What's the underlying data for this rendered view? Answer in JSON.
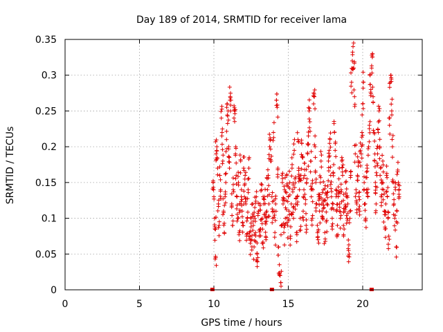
{
  "chart_data": {
    "type": "scatter",
    "title": "Day 189 of 2014, SRMTID for receiver lama",
    "xlabel": "GPS time / hours",
    "ylabel": "SRMTID / TECUs",
    "xlim": [
      0,
      24
    ],
    "ylim": [
      0,
      0.35
    ],
    "x_ticks": [
      0,
      5,
      10,
      15,
      20
    ],
    "x_tick_labels": [
      "0",
      "5",
      "10",
      "15",
      "20"
    ],
    "y_ticks": [
      0,
      0.05,
      0.1,
      0.15,
      0.2,
      0.25,
      0.3,
      0.35
    ],
    "y_tick_labels": [
      "0",
      "0.05",
      "0.1",
      "0.15",
      "0.2",
      "0.25",
      "0.3",
      "0.35"
    ],
    "grid": true,
    "marker": "plus",
    "color": "#e00000",
    "data_x_range": [
      9.9,
      22.5
    ],
    "baseline_markers_x": [
      9.9,
      13.9,
      20.6
    ],
    "series": [
      {
        "name": "lama",
        "points": [
          [
            9.95,
            0.15
          ],
          [
            10.0,
            0.13
          ],
          [
            10.05,
            0.1
          ],
          [
            10.1,
            0.085
          ],
          [
            10.12,
            0.045
          ],
          [
            10.15,
            0.19
          ],
          [
            10.2,
            0.2
          ],
          [
            10.25,
            0.17
          ],
          [
            10.3,
            0.12
          ],
          [
            10.35,
            0.09
          ],
          [
            10.4,
            0.16
          ],
          [
            10.45,
            0.14
          ],
          [
            10.5,
            0.24
          ],
          [
            10.55,
            0.22
          ],
          [
            10.6,
            0.18
          ],
          [
            10.65,
            0.11
          ],
          [
            10.7,
            0.08
          ],
          [
            10.75,
            0.13
          ],
          [
            10.8,
            0.15
          ],
          [
            10.85,
            0.21
          ],
          [
            10.9,
            0.26
          ],
          [
            10.95,
            0.25
          ],
          [
            11.0,
            0.2
          ],
          [
            11.05,
            0.17
          ],
          [
            11.1,
            0.27
          ],
          [
            11.15,
            0.265
          ],
          [
            11.2,
            0.12
          ],
          [
            11.25,
            0.09
          ],
          [
            11.3,
            0.14
          ],
          [
            11.35,
            0.24
          ],
          [
            11.4,
            0.25
          ],
          [
            11.45,
            0.19
          ],
          [
            11.5,
            0.16
          ],
          [
            11.55,
            0.13
          ],
          [
            11.6,
            0.1
          ],
          [
            11.65,
            0.15
          ],
          [
            11.7,
            0.08
          ],
          [
            11.75,
            0.12
          ],
          [
            11.8,
            0.18
          ],
          [
            11.85,
            0.14
          ],
          [
            11.9,
            0.11
          ],
          [
            11.95,
            0.09
          ],
          [
            12.0,
            0.17
          ],
          [
            12.05,
            0.13
          ],
          [
            12.1,
            0.16
          ],
          [
            12.15,
            0.12
          ],
          [
            12.2,
            0.075
          ],
          [
            12.25,
            0.1
          ],
          [
            12.3,
            0.14
          ],
          [
            12.35,
            0.17
          ],
          [
            12.4,
            0.08
          ],
          [
            12.45,
            0.065
          ],
          [
            12.5,
            0.1
          ],
          [
            12.55,
            0.07
          ],
          [
            12.6,
            0.12
          ],
          [
            12.65,
            0.09
          ],
          [
            12.7,
            0.06
          ],
          [
            12.75,
            0.115
          ],
          [
            12.8,
            0.08
          ],
          [
            12.85,
            0.13
          ],
          [
            12.9,
            0.05
          ],
          [
            12.95,
            0.045
          ],
          [
            13.0,
            0.11
          ],
          [
            13.05,
            0.075
          ],
          [
            13.1,
            0.12
          ],
          [
            13.15,
            0.085
          ],
          [
            13.2,
            0.14
          ],
          [
            13.25,
            0.1
          ],
          [
            13.3,
            0.065
          ],
          [
            13.35,
            0.12
          ],
          [
            13.4,
            0.13
          ],
          [
            13.45,
            0.095
          ],
          [
            13.5,
            0.07
          ],
          [
            13.55,
            0.11
          ],
          [
            13.6,
            0.14
          ],
          [
            13.65,
            0.16
          ],
          [
            13.7,
            0.12
          ],
          [
            13.75,
            0.2
          ],
          [
            13.8,
            0.21
          ],
          [
            13.85,
            0.18
          ],
          [
            13.9,
            0.13
          ],
          [
            13.95,
            0.1
          ],
          [
            14.0,
            0.22
          ],
          [
            14.05,
            0.11
          ],
          [
            14.1,
            0.08
          ],
          [
            14.15,
            0.12
          ],
          [
            14.2,
            0.265
          ],
          [
            14.25,
            0.255
          ],
          [
            14.3,
            0.17
          ],
          [
            14.35,
            0.06
          ],
          [
            14.4,
            0.035
          ],
          [
            14.45,
            0.02
          ],
          [
            14.5,
            0.01
          ],
          [
            14.55,
            0.09
          ],
          [
            14.6,
            0.15
          ],
          [
            14.65,
            0.12
          ],
          [
            14.7,
            0.08
          ],
          [
            14.75,
            0.14
          ],
          [
            14.8,
            0.1
          ],
          [
            14.85,
            0.125
          ],
          [
            14.9,
            0.16
          ],
          [
            14.95,
            0.09
          ],
          [
            15.0,
            0.13
          ],
          [
            15.05,
            0.11
          ],
          [
            15.1,
            0.15
          ],
          [
            15.15,
            0.075
          ],
          [
            15.2,
            0.12
          ],
          [
            15.25,
            0.17
          ],
          [
            15.3,
            0.14
          ],
          [
            15.35,
            0.1
          ],
          [
            15.4,
            0.195
          ],
          [
            15.45,
            0.155
          ],
          [
            15.5,
            0.12
          ],
          [
            15.55,
            0.08
          ],
          [
            15.6,
            0.13
          ],
          [
            15.65,
            0.21
          ],
          [
            15.7,
            0.17
          ],
          [
            15.75,
            0.14
          ],
          [
            15.8,
            0.1
          ],
          [
            15.85,
            0.16
          ],
          [
            15.9,
            0.205
          ],
          [
            15.95,
            0.185
          ],
          [
            16.0,
            0.11
          ],
          [
            16.05,
            0.14
          ],
          [
            16.1,
            0.16
          ],
          [
            16.15,
            0.12
          ],
          [
            16.2,
            0.09
          ],
          [
            16.25,
            0.155
          ],
          [
            16.3,
            0.19
          ],
          [
            16.35,
            0.215
          ],
          [
            16.4,
            0.25
          ],
          [
            16.45,
            0.235
          ],
          [
            16.5,
            0.18
          ],
          [
            16.55,
            0.13
          ],
          [
            16.6,
            0.1
          ],
          [
            16.65,
            0.14
          ],
          [
            16.7,
            0.26
          ],
          [
            16.75,
            0.27
          ],
          [
            16.8,
            0.2
          ],
          [
            16.85,
            0.15
          ],
          [
            16.9,
            0.12
          ],
          [
            16.95,
            0.09
          ],
          [
            17.0,
            0.07
          ],
          [
            17.05,
            0.13
          ],
          [
            17.1,
            0.11
          ],
          [
            17.15,
            0.15
          ],
          [
            17.2,
            0.18
          ],
          [
            17.25,
            0.12
          ],
          [
            17.3,
            0.1
          ],
          [
            17.35,
            0.14
          ],
          [
            17.4,
            0.115
          ],
          [
            17.45,
            0.08
          ],
          [
            17.5,
            0.135
          ],
          [
            17.55,
            0.095
          ],
          [
            17.6,
            0.12
          ],
          [
            17.65,
            0.145
          ],
          [
            17.7,
            0.18
          ],
          [
            17.75,
            0.195
          ],
          [
            17.8,
            0.21
          ],
          [
            17.85,
            0.16
          ],
          [
            17.9,
            0.13
          ],
          [
            17.95,
            0.1
          ],
          [
            18.0,
            0.12
          ],
          [
            18.05,
            0.175
          ],
          [
            18.1,
            0.22
          ],
          [
            18.15,
            0.195
          ],
          [
            18.2,
            0.14
          ],
          [
            18.25,
            0.11
          ],
          [
            18.3,
            0.09
          ],
          [
            18.35,
            0.13
          ],
          [
            18.4,
            0.155
          ],
          [
            18.45,
            0.12
          ],
          [
            18.5,
            0.1
          ],
          [
            18.55,
            0.14
          ],
          [
            18.6,
            0.18
          ],
          [
            18.65,
            0.16
          ],
          [
            18.7,
            0.125
          ],
          [
            18.75,
            0.085
          ],
          [
            18.8,
            0.11
          ],
          [
            18.85,
            0.15
          ],
          [
            18.9,
            0.13
          ],
          [
            18.95,
            0.1
          ],
          [
            19.0,
            0.12
          ],
          [
            19.05,
            0.055
          ],
          [
            19.1,
            0.05
          ],
          [
            19.15,
            0.11
          ],
          [
            19.2,
            0.16
          ],
          [
            19.25,
            0.29
          ],
          [
            19.3,
            0.32
          ],
          [
            19.35,
            0.34
          ],
          [
            19.4,
            0.31
          ],
          [
            19.45,
            0.27
          ],
          [
            19.5,
            0.19
          ],
          [
            19.55,
            0.14
          ],
          [
            19.6,
            0.12
          ],
          [
            19.65,
            0.16
          ],
          [
            19.7,
            0.18
          ],
          [
            19.75,
            0.13
          ],
          [
            19.8,
            0.11
          ],
          [
            19.85,
            0.195
          ],
          [
            19.9,
            0.19
          ],
          [
            19.95,
            0.22
          ],
          [
            20.0,
            0.26
          ],
          [
            20.05,
            0.29
          ],
          [
            20.1,
            0.15
          ],
          [
            20.15,
            0.12
          ],
          [
            20.2,
            0.1
          ],
          [
            20.25,
            0.14
          ],
          [
            20.3,
            0.17
          ],
          [
            20.35,
            0.13
          ],
          [
            20.4,
            0.2
          ],
          [
            20.45,
            0.23
          ],
          [
            20.5,
            0.3
          ],
          [
            20.55,
            0.28
          ],
          [
            20.6,
            0.31
          ],
          [
            20.65,
            0.33
          ],
          [
            20.7,
            0.27
          ],
          [
            20.75,
            0.22
          ],
          [
            20.8,
            0.18
          ],
          [
            20.85,
            0.15
          ],
          [
            20.9,
            0.12
          ],
          [
            20.95,
            0.16
          ],
          [
            21.0,
            0.19
          ],
          [
            21.05,
            0.22
          ],
          [
            21.1,
            0.25
          ],
          [
            21.15,
            0.2
          ],
          [
            21.2,
            0.17
          ],
          [
            21.25,
            0.13
          ],
          [
            21.3,
            0.15
          ],
          [
            21.35,
            0.18
          ],
          [
            21.4,
            0.14
          ],
          [
            21.45,
            0.11
          ],
          [
            21.5,
            0.085
          ],
          [
            21.55,
            0.12
          ],
          [
            21.6,
            0.16
          ],
          [
            21.65,
            0.13
          ],
          [
            21.7,
            0.1
          ],
          [
            21.75,
            0.075
          ],
          [
            21.8,
            0.23
          ],
          [
            21.85,
            0.29
          ],
          [
            21.9,
            0.3
          ],
          [
            21.95,
            0.25
          ],
          [
            22.0,
            0.2
          ],
          [
            22.05,
            0.15
          ],
          [
            22.1,
            0.12
          ],
          [
            22.15,
            0.1
          ],
          [
            22.2,
            0.14
          ],
          [
            22.25,
            0.06
          ],
          [
            22.3,
            0.11
          ],
          [
            22.35,
            0.165
          ],
          [
            22.4,
            0.15
          ],
          [
            22.45,
            0.13
          ]
        ]
      }
    ]
  }
}
